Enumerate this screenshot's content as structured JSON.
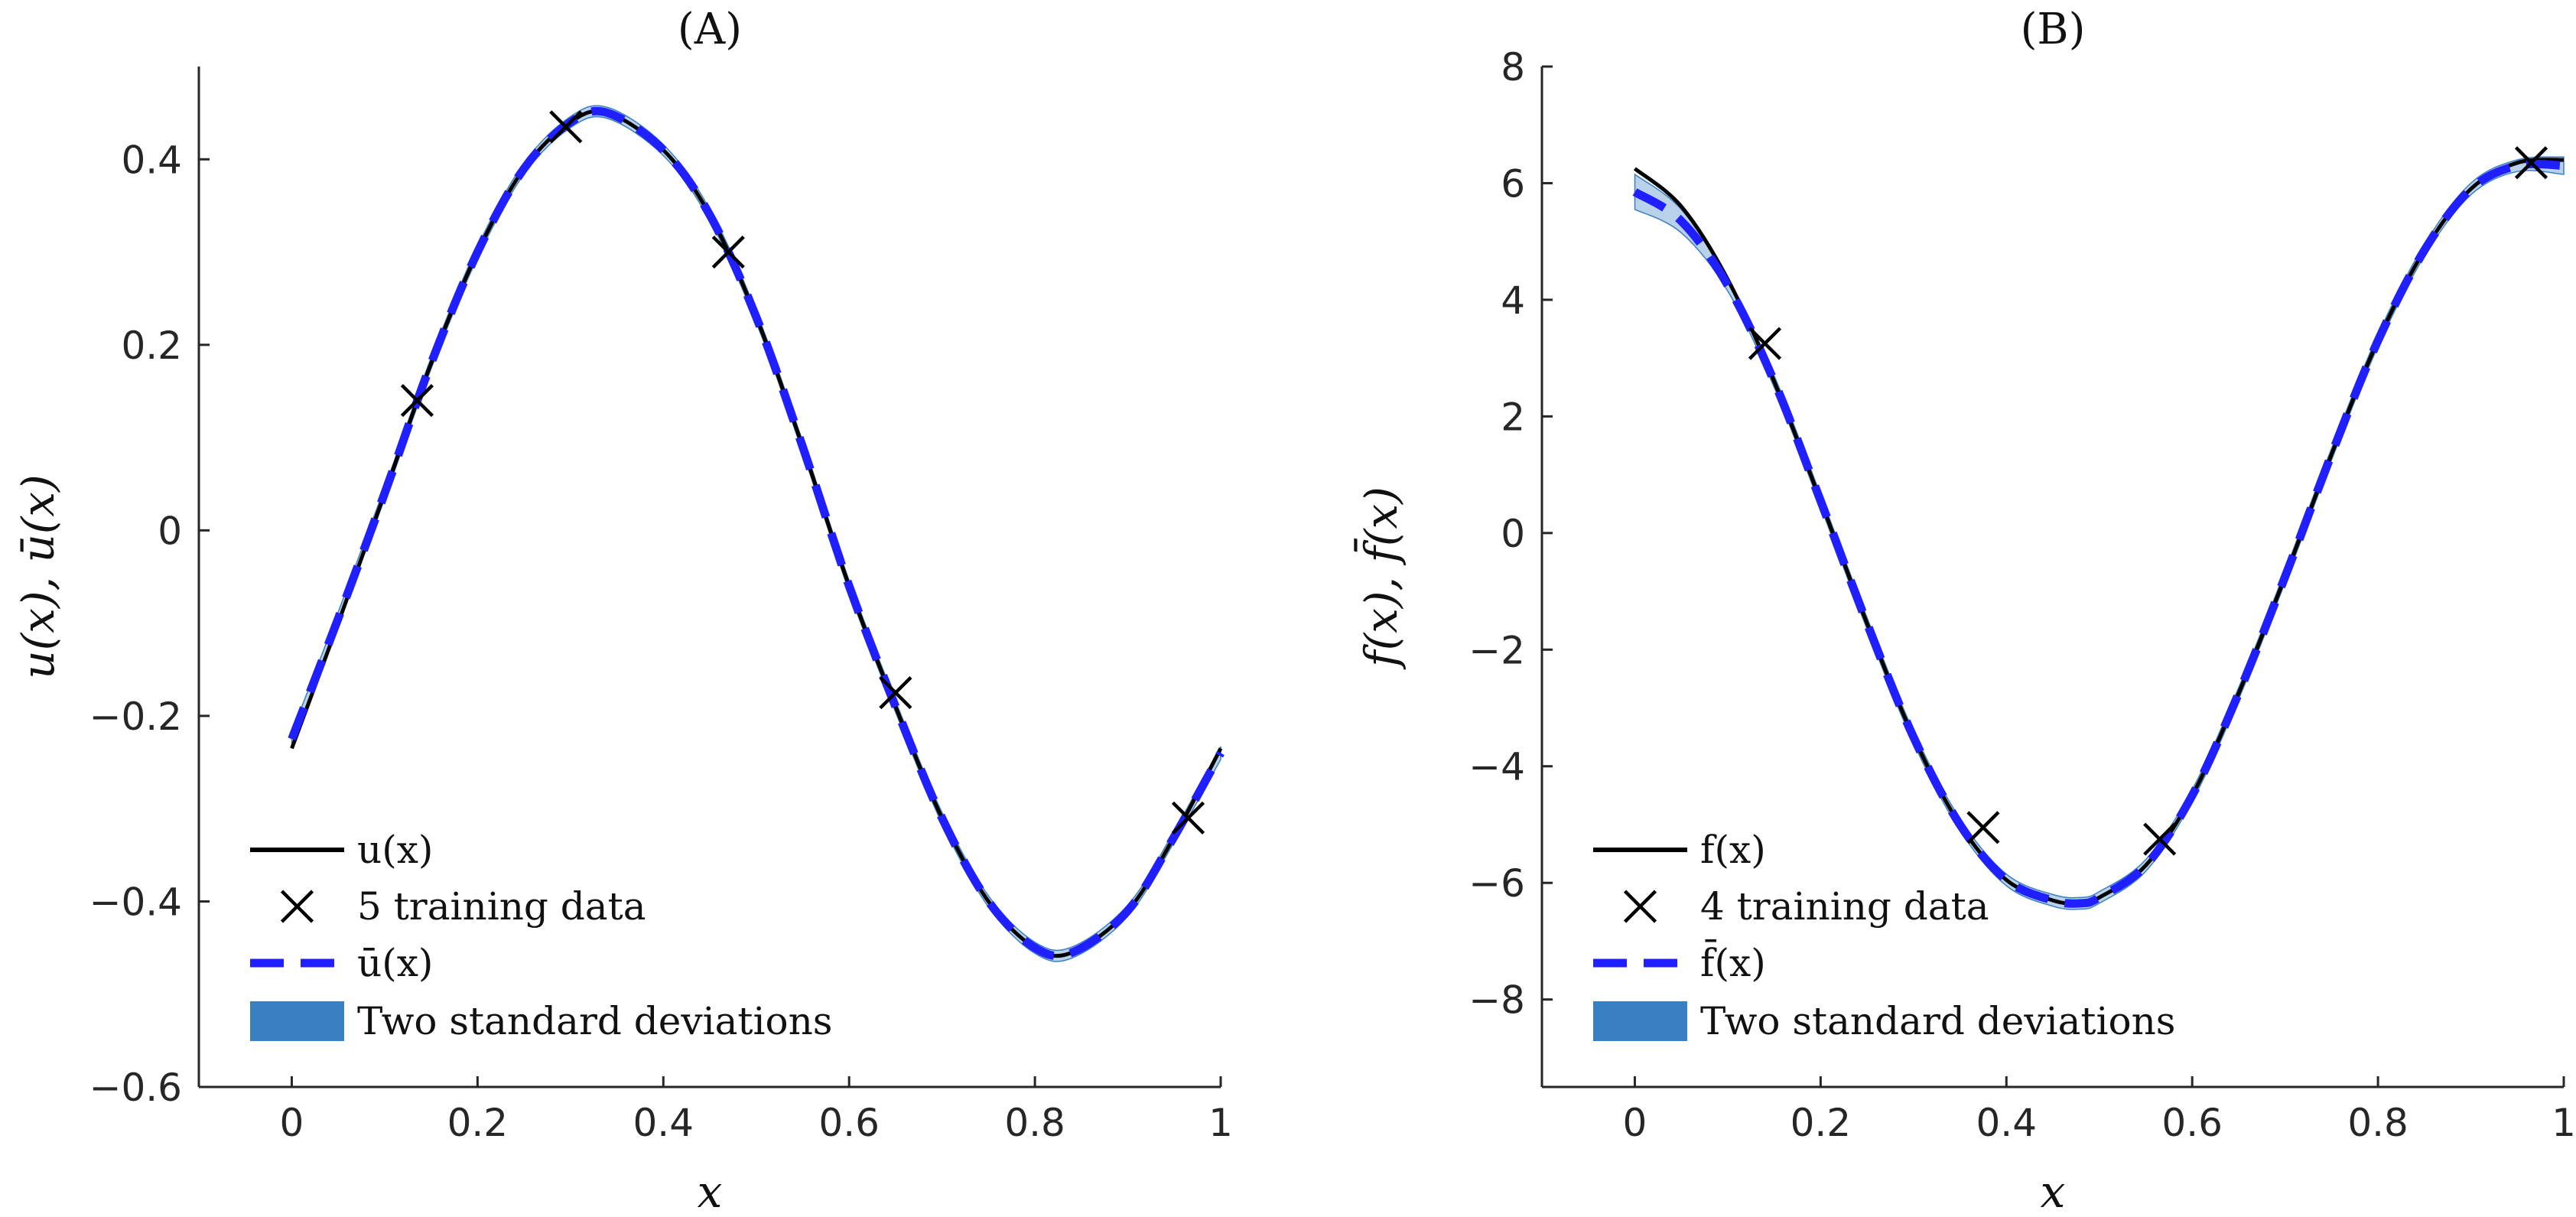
{
  "chart_data": [
    {
      "type": "line",
      "title": "(A)",
      "xlabel": "x",
      "ylabel": "u(x), ū(x)",
      "xlim": [
        -0.1,
        1.0
      ],
      "ylim": [
        -0.6,
        0.5
      ],
      "xticks": [
        0,
        0.2,
        0.4,
        0.6,
        0.8,
        1
      ],
      "xtick_labels": [
        "0",
        "0.2",
        "0.4",
        "0.6",
        "0.8",
        "1"
      ],
      "yticks": [
        -0.6,
        -0.4,
        -0.2,
        0,
        0.2,
        0.4
      ],
      "ytick_labels": [
        "−0.6",
        "−0.4",
        "−0.2",
        "0",
        "0.2",
        "0.4"
      ],
      "grid": false,
      "legend_position": "bottom-left",
      "series": [
        {
          "name": "u(x)",
          "style": "solid",
          "color": "#000000",
          "x": [
            0.0,
            0.05,
            0.1,
            0.15,
            0.2,
            0.25,
            0.3,
            0.34,
            0.4,
            0.45,
            0.5,
            0.55,
            0.6,
            0.65,
            0.7,
            0.75,
            0.8,
            0.84,
            0.9,
            0.95,
            1.0
          ],
          "y": [
            -0.235,
            -0.1,
            0.04,
            0.18,
            0.3,
            0.39,
            0.44,
            0.45,
            0.41,
            0.34,
            0.23,
            0.09,
            -0.06,
            -0.19,
            -0.31,
            -0.4,
            -0.45,
            -0.455,
            -0.41,
            -0.33,
            -0.235
          ]
        },
        {
          "name": "5 training data",
          "style": "marker",
          "color": "#000000",
          "x": [
            0.135,
            0.295,
            0.47,
            0.65,
            0.965
          ],
          "y": [
            0.14,
            0.435,
            0.3,
            -0.175,
            -0.31
          ]
        },
        {
          "name": "ū(x)",
          "style": "dashed",
          "color": "#1f1fff",
          "x": [
            0.0,
            0.05,
            0.1,
            0.15,
            0.2,
            0.25,
            0.3,
            0.34,
            0.4,
            0.45,
            0.5,
            0.55,
            0.6,
            0.65,
            0.7,
            0.75,
            0.8,
            0.84,
            0.9,
            0.95,
            1.0
          ],
          "y": [
            -0.225,
            -0.095,
            0.04,
            0.18,
            0.3,
            0.39,
            0.44,
            0.45,
            0.41,
            0.34,
            0.23,
            0.09,
            -0.06,
            -0.19,
            -0.31,
            -0.4,
            -0.45,
            -0.455,
            -0.41,
            -0.33,
            -0.24
          ]
        },
        {
          "name": "Two standard deviations",
          "style": "band",
          "color": "#3a7fc1",
          "x": [
            0.0,
            0.05,
            0.1,
            0.15,
            0.2,
            0.25,
            0.3,
            0.34,
            0.4,
            0.45,
            0.5,
            0.55,
            0.6,
            0.65,
            0.7,
            0.75,
            0.8,
            0.84,
            0.9,
            0.95,
            1.0
          ],
          "y_lower": [
            -0.232,
            -0.102,
            0.034,
            0.174,
            0.294,
            0.384,
            0.434,
            0.444,
            0.404,
            0.334,
            0.224,
            0.084,
            -0.066,
            -0.196,
            -0.316,
            -0.406,
            -0.456,
            -0.461,
            -0.416,
            -0.336,
            -0.247
          ],
          "y_upper": [
            -0.218,
            -0.088,
            0.046,
            0.186,
            0.306,
            0.396,
            0.446,
            0.456,
            0.416,
            0.346,
            0.236,
            0.096,
            -0.054,
            -0.184,
            -0.304,
            -0.394,
            -0.444,
            -0.449,
            -0.404,
            -0.324,
            -0.233
          ]
        }
      ]
    },
    {
      "type": "line",
      "title": "(B)",
      "xlabel": "x",
      "ylabel": "f(x), f̄(x)",
      "xlim": [
        -0.1,
        1.0
      ],
      "ylim": [
        -9.5,
        8.0
      ],
      "xticks": [
        0,
        0.2,
        0.4,
        0.6,
        0.8,
        1
      ],
      "xtick_labels": [
        "0",
        "0.2",
        "0.4",
        "0.6",
        "0.8",
        "1"
      ],
      "yticks": [
        -8,
        -6,
        -4,
        -2,
        0,
        2,
        4,
        6,
        8
      ],
      "ytick_labels": [
        "−8",
        "−6",
        "−4",
        "−2",
        "0",
        "2",
        "4",
        "6",
        "8"
      ],
      "grid": false,
      "legend_position": "bottom-left",
      "series": [
        {
          "name": "f(x)",
          "style": "solid",
          "color": "#000000",
          "x": [
            0.0,
            0.05,
            0.1,
            0.15,
            0.2,
            0.25,
            0.3,
            0.35,
            0.4,
            0.45,
            0.48,
            0.5,
            0.55,
            0.6,
            0.65,
            0.7,
            0.75,
            0.8,
            0.85,
            0.9,
            0.95,
            1.0
          ],
          "y": [
            6.25,
            5.6,
            4.35,
            2.6,
            0.55,
            -1.55,
            -3.5,
            -5.0,
            -5.95,
            -6.3,
            -6.35,
            -6.25,
            -5.7,
            -4.5,
            -2.75,
            -0.75,
            1.35,
            3.3,
            4.85,
            5.9,
            6.35,
            6.4
          ]
        },
        {
          "name": "4 training data",
          "style": "marker",
          "color": "#000000",
          "x": [
            0.14,
            0.375,
            0.565,
            0.965
          ],
          "y": [
            3.25,
            -5.05,
            -5.25,
            6.35
          ]
        },
        {
          "name": "f̄(x)",
          "style": "dashed",
          "color": "#1f1fff",
          "x": [
            0.0,
            0.05,
            0.1,
            0.15,
            0.2,
            0.25,
            0.3,
            0.35,
            0.4,
            0.45,
            0.48,
            0.5,
            0.55,
            0.6,
            0.65,
            0.7,
            0.75,
            0.8,
            0.85,
            0.9,
            0.95,
            1.0
          ],
          "y": [
            5.85,
            5.35,
            4.25,
            2.6,
            0.55,
            -1.55,
            -3.5,
            -5.0,
            -5.95,
            -6.3,
            -6.35,
            -6.25,
            -5.7,
            -4.5,
            -2.75,
            -0.75,
            1.35,
            3.3,
            4.85,
            5.9,
            6.3,
            6.3
          ]
        },
        {
          "name": "Two standard deviations",
          "style": "band",
          "color": "#3a7fc1",
          "x": [
            0.0,
            0.05,
            0.1,
            0.15,
            0.2,
            0.25,
            0.3,
            0.35,
            0.4,
            0.45,
            0.48,
            0.5,
            0.55,
            0.6,
            0.65,
            0.7,
            0.75,
            0.8,
            0.85,
            0.9,
            0.95,
            1.0
          ],
          "y_lower": [
            5.55,
            5.15,
            4.15,
            2.5,
            0.45,
            -1.65,
            -3.6,
            -5.1,
            -6.05,
            -6.4,
            -6.45,
            -6.35,
            -5.8,
            -4.6,
            -2.85,
            -0.85,
            1.25,
            3.2,
            4.75,
            5.8,
            6.2,
            6.15
          ],
          "y_upper": [
            6.15,
            5.55,
            4.35,
            2.7,
            0.65,
            -1.45,
            -3.4,
            -4.9,
            -5.85,
            -6.2,
            -6.25,
            -6.15,
            -5.6,
            -4.4,
            -2.65,
            -0.65,
            1.45,
            3.4,
            4.95,
            6.0,
            6.4,
            6.45
          ]
        }
      ]
    }
  ]
}
